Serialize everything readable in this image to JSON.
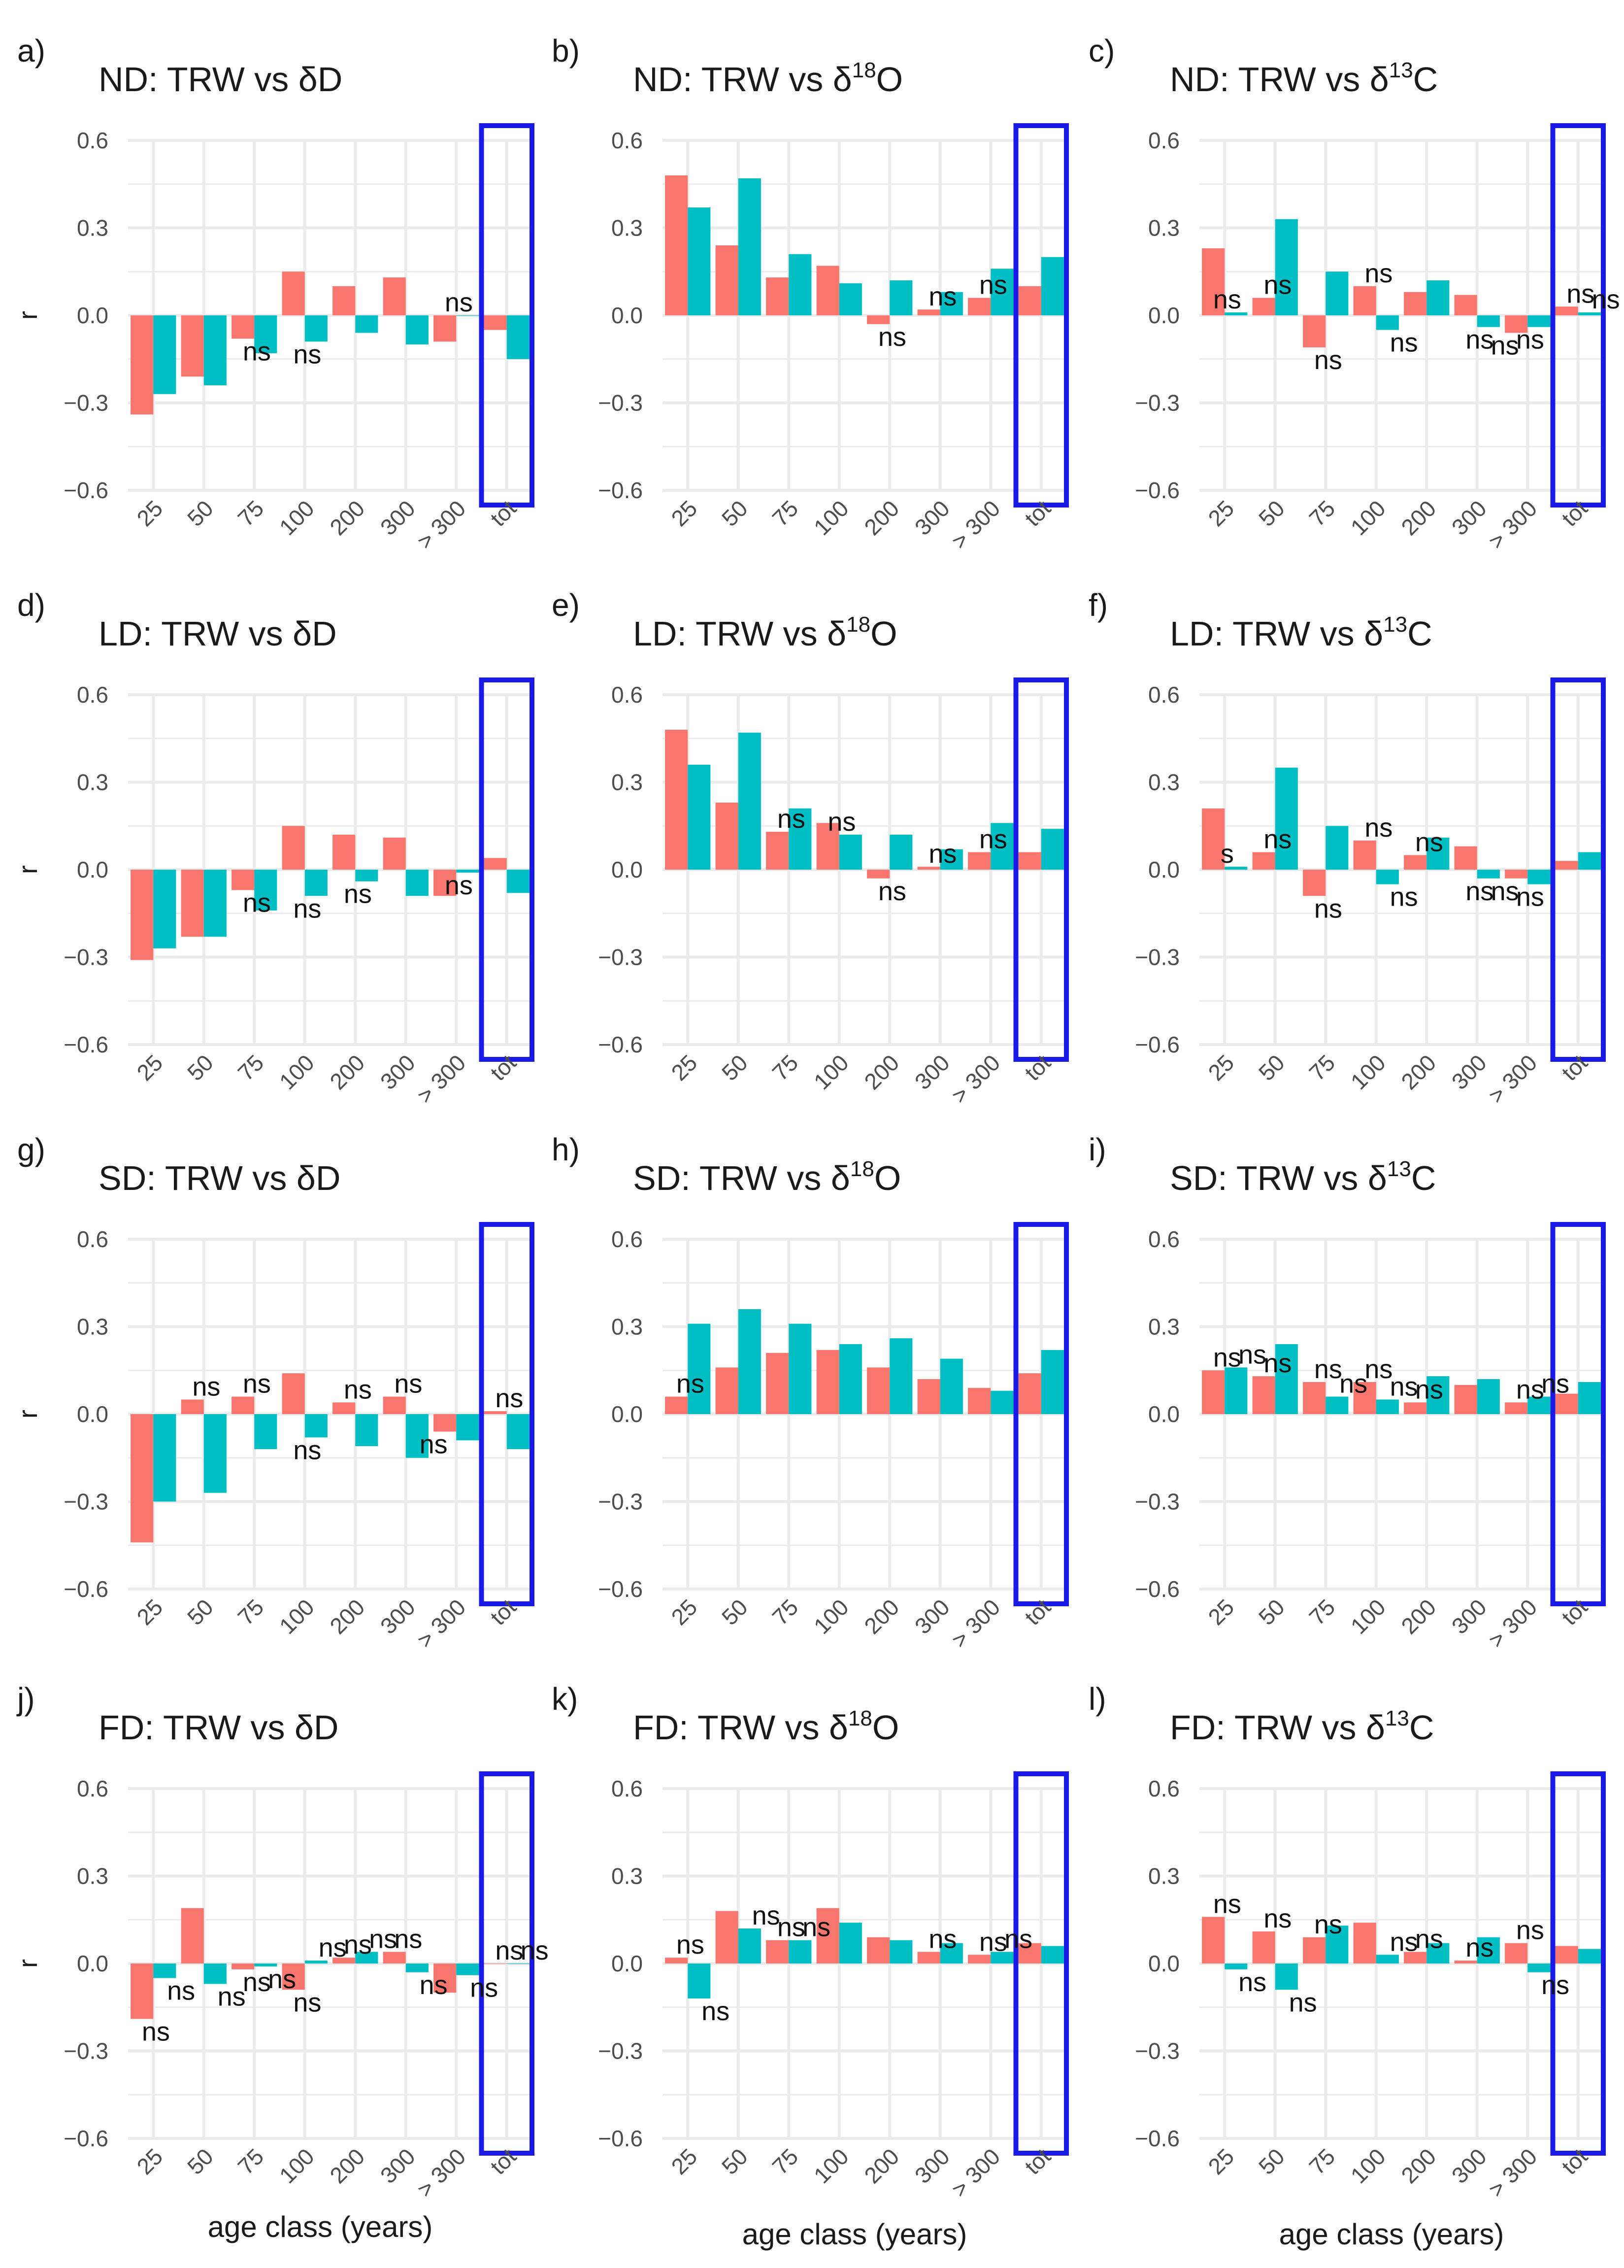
{
  "colors": {
    "series1": "#F8766D",
    "series2": "#00BFC4",
    "highlight": "#1A1AE6",
    "grid": "#EBEBEB"
  },
  "x_axis_label": "age class (years)",
  "chart_data": [
    {
      "type": "bar",
      "panel": "a)",
      "title_parts": [
        "ND: TRW vs ",
        "δD"
      ],
      "ylabel": "r",
      "categories": [
        "25",
        "50",
        "75",
        "100",
        "200",
        "300",
        "> 300",
        "tot"
      ],
      "yticks": [
        "0.6",
        "0.3",
        "0.0",
        "−0.3",
        "−0.6"
      ],
      "ylim": [
        -0.6,
        0.6
      ],
      "series": [
        {
          "name": "series1",
          "values": [
            -0.34,
            -0.21,
            -0.08,
            0.15,
            0.1,
            0.13,
            -0.09,
            -0.05
          ]
        },
        {
          "name": "series2",
          "values": [
            -0.27,
            -0.24,
            -0.13,
            -0.09,
            -0.06,
            -0.1,
            0.0,
            -0.15
          ]
        }
      ],
      "ns_labels": [
        {
          "text": "ns",
          "cat": 2,
          "value": -0.08
        },
        {
          "text": "ns",
          "cat": 3,
          "value": -0.09
        },
        {
          "text": "ns",
          "cat": 6,
          "value": 0.0
        }
      ]
    },
    {
      "type": "bar",
      "panel": "b)",
      "title_parts": [
        "ND: TRW vs ",
        "δ",
        "18",
        "O"
      ],
      "ylabel": "",
      "categories": [
        "25",
        "50",
        "75",
        "100",
        "200",
        "300",
        "> 300",
        "tot"
      ],
      "yticks": [
        "0.6",
        "0.3",
        "0.0",
        "−0.3",
        "−0.6"
      ],
      "ylim": [
        -0.6,
        0.6
      ],
      "series": [
        {
          "name": "series1",
          "values": [
            0.48,
            0.24,
            0.13,
            0.17,
            -0.03,
            0.02,
            0.06,
            0.1
          ]
        },
        {
          "name": "series2",
          "values": [
            0.37,
            0.47,
            0.21,
            0.11,
            0.12,
            0.08,
            0.16,
            0.2
          ]
        }
      ],
      "ns_labels": [
        {
          "text": "ns",
          "cat": 4,
          "value": -0.03
        },
        {
          "text": "ns",
          "cat": 5,
          "value": 0.02
        },
        {
          "text": "ns",
          "cat": 6,
          "value": 0.06
        }
      ]
    },
    {
      "type": "bar",
      "panel": "c)",
      "title_parts": [
        "ND: TRW vs ",
        "δ",
        "13",
        "C"
      ],
      "ylabel": "",
      "categories": [
        "25",
        "50",
        "75",
        "100",
        "200",
        "300",
        "> 300",
        "tot"
      ],
      "yticks": [
        "0.6",
        "0.3",
        "0.0",
        "−0.3",
        "−0.6"
      ],
      "ylim": [
        -0.6,
        0.6
      ],
      "series": [
        {
          "name": "series1",
          "values": [
            0.23,
            0.06,
            -0.11,
            0.1,
            0.08,
            0.07,
            -0.06,
            0.03
          ]
        },
        {
          "name": "series2",
          "values": [
            0.01,
            0.33,
            0.15,
            -0.05,
            0.12,
            -0.04,
            -0.04,
            0.01
          ]
        }
      ],
      "ns_labels": [
        {
          "text": "ns",
          "cat": 0,
          "value": 0.01
        },
        {
          "text": "ns",
          "cat": 1,
          "value": 0.06
        },
        {
          "text": "ns",
          "cat": 2,
          "value": -0.11
        },
        {
          "text": "ns",
          "cat": 3,
          "value": 0.1
        },
        {
          "text": "ns",
          "cat": 3.5,
          "value": -0.05
        },
        {
          "text": "ns",
          "cat": 5,
          "value": -0.04
        },
        {
          "text": "ns",
          "cat": 5.5,
          "value": -0.06
        },
        {
          "text": "ns",
          "cat": 6,
          "value": -0.04
        },
        {
          "text": "ns",
          "cat": 7,
          "value": 0.03
        },
        {
          "text": "ns",
          "cat": 7.5,
          "value": 0.01
        }
      ]
    },
    {
      "type": "bar",
      "panel": "d)",
      "title_parts": [
        "LD: TRW vs ",
        "δD"
      ],
      "ylabel": "r",
      "categories": [
        "25",
        "50",
        "75",
        "100",
        "200",
        "300",
        "> 300",
        "tot"
      ],
      "yticks": [
        "0.6",
        "0.3",
        "0.0",
        "−0.3",
        "−0.6"
      ],
      "ylim": [
        -0.6,
        0.6
      ],
      "series": [
        {
          "name": "series1",
          "values": [
            -0.31,
            -0.23,
            -0.07,
            0.15,
            0.12,
            0.11,
            -0.09,
            0.04
          ]
        },
        {
          "name": "series2",
          "values": [
            -0.27,
            -0.23,
            -0.14,
            -0.09,
            -0.04,
            -0.09,
            -0.01,
            -0.08
          ]
        }
      ],
      "ns_labels": [
        {
          "text": "ns",
          "cat": 2,
          "value": -0.07
        },
        {
          "text": "ns",
          "cat": 3,
          "value": -0.09
        },
        {
          "text": "ns",
          "cat": 4,
          "value": -0.04
        },
        {
          "text": "ns",
          "cat": 6,
          "value": -0.01
        }
      ]
    },
    {
      "type": "bar",
      "panel": "e)",
      "title_parts": [
        "LD: TRW vs ",
        "δ",
        "18",
        "O"
      ],
      "ylabel": "",
      "categories": [
        "25",
        "50",
        "75",
        "100",
        "200",
        "300",
        "> 300",
        "tot"
      ],
      "yticks": [
        "0.6",
        "0.3",
        "0.0",
        "−0.3",
        "−0.6"
      ],
      "ylim": [
        -0.6,
        0.6
      ],
      "series": [
        {
          "name": "series1",
          "values": [
            0.48,
            0.23,
            0.13,
            0.16,
            -0.03,
            0.01,
            0.06,
            0.06
          ]
        },
        {
          "name": "series2",
          "values": [
            0.36,
            0.47,
            0.21,
            0.12,
            0.12,
            0.07,
            0.16,
            0.14
          ]
        }
      ],
      "ns_labels": [
        {
          "text": "ns",
          "cat": 2,
          "value": 0.13
        },
        {
          "text": "ns",
          "cat": 3,
          "value": 0.12
        },
        {
          "text": "ns",
          "cat": 4,
          "value": -0.03
        },
        {
          "text": "ns",
          "cat": 5,
          "value": 0.01
        },
        {
          "text": "ns",
          "cat": 6,
          "value": 0.06
        }
      ]
    },
    {
      "type": "bar",
      "panel": "f)",
      "title_parts": [
        "LD: TRW vs ",
        "δ",
        "13",
        "C"
      ],
      "ylabel": "",
      "categories": [
        "25",
        "50",
        "75",
        "100",
        "200",
        "300",
        "> 300",
        "tot"
      ],
      "yticks": [
        "0.6",
        "0.3",
        "0.0",
        "−0.3",
        "−0.6"
      ],
      "ylim": [
        -0.6,
        0.6
      ],
      "series": [
        {
          "name": "series1",
          "values": [
            0.21,
            0.06,
            -0.09,
            0.1,
            0.05,
            0.08,
            -0.03,
            0.03
          ]
        },
        {
          "name": "series2",
          "values": [
            0.01,
            0.35,
            0.15,
            -0.05,
            0.11,
            -0.03,
            -0.05,
            0.06
          ]
        }
      ],
      "ns_labels": [
        {
          "text": "s",
          "cat": 0,
          "value": 0.01
        },
        {
          "text": "ns",
          "cat": 1,
          "value": 0.06
        },
        {
          "text": "ns",
          "cat": 2,
          "value": -0.09
        },
        {
          "text": "ns",
          "cat": 3,
          "value": 0.1
        },
        {
          "text": "ns",
          "cat": 3.5,
          "value": -0.05
        },
        {
          "text": "ns",
          "cat": 4,
          "value": 0.05
        },
        {
          "text": "ns",
          "cat": 5,
          "value": -0.03
        },
        {
          "text": "ns",
          "cat": 5.5,
          "value": -0.03
        },
        {
          "text": "ns",
          "cat": 6,
          "value": -0.05
        }
      ]
    },
    {
      "type": "bar",
      "panel": "g)",
      "title_parts": [
        "SD: TRW vs ",
        "δD"
      ],
      "ylabel": "r",
      "categories": [
        "25",
        "50",
        "75",
        "100",
        "200",
        "300",
        "> 300",
        "tot"
      ],
      "yticks": [
        "0.6",
        "0.3",
        "0.0",
        "−0.3",
        "−0.6"
      ],
      "ylim": [
        -0.6,
        0.6
      ],
      "series": [
        {
          "name": "series1",
          "values": [
            -0.44,
            0.05,
            0.06,
            0.14,
            0.04,
            0.06,
            -0.06,
            0.01
          ]
        },
        {
          "name": "series2",
          "values": [
            -0.3,
            -0.27,
            -0.12,
            -0.08,
            -0.11,
            -0.15,
            -0.09,
            -0.12
          ]
        }
      ],
      "ns_labels": [
        {
          "text": "ns",
          "cat": 1,
          "value": 0.05
        },
        {
          "text": "ns",
          "cat": 2,
          "value": 0.06
        },
        {
          "text": "ns",
          "cat": 3,
          "value": -0.08
        },
        {
          "text": "ns",
          "cat": 4,
          "value": 0.04
        },
        {
          "text": "ns",
          "cat": 5,
          "value": 0.06
        },
        {
          "text": "ns",
          "cat": 5.5,
          "value": -0.06
        },
        {
          "text": "ns",
          "cat": 7,
          "value": 0.01
        }
      ]
    },
    {
      "type": "bar",
      "panel": "h)",
      "title_parts": [
        "SD: TRW  vs ",
        "δ",
        "18",
        "O"
      ],
      "ylabel": "",
      "categories": [
        "25",
        "50",
        "75",
        "100",
        "200",
        "300",
        "> 300",
        "tot"
      ],
      "yticks": [
        "0.6",
        "0.3",
        "0.0",
        "−0.3",
        "−0.6"
      ],
      "ylim": [
        -0.6,
        0.6
      ],
      "series": [
        {
          "name": "series1",
          "values": [
            0.06,
            0.16,
            0.21,
            0.22,
            0.16,
            0.12,
            0.09,
            0.14
          ]
        },
        {
          "name": "series2",
          "values": [
            0.31,
            0.36,
            0.31,
            0.24,
            0.26,
            0.19,
            0.08,
            0.22
          ]
        }
      ],
      "ns_labels": [
        {
          "text": "ns",
          "cat": 0,
          "value": 0.06
        }
      ]
    },
    {
      "type": "bar",
      "panel": "i)",
      "title_parts": [
        "SD: TRW vs ",
        "δ",
        "13",
        "C"
      ],
      "ylabel": "",
      "categories": [
        "25",
        "50",
        "75",
        "100",
        "200",
        "300",
        "> 300",
        "tot"
      ],
      "yticks": [
        "0.6",
        "0.3",
        "0.0",
        "−0.3",
        "−0.6"
      ],
      "ylim": [
        -0.6,
        0.6
      ],
      "series": [
        {
          "name": "series1",
          "values": [
            0.15,
            0.13,
            0.11,
            0.11,
            0.04,
            0.1,
            0.04,
            0.07
          ]
        },
        {
          "name": "series2",
          "values": [
            0.16,
            0.24,
            0.06,
            0.05,
            0.13,
            0.12,
            0.06,
            0.11
          ]
        }
      ],
      "ns_labels": [
        {
          "text": "ns",
          "cat": 0,
          "value": 0.15
        },
        {
          "text": "ns",
          "cat": 0.5,
          "value": 0.16
        },
        {
          "text": "ns",
          "cat": 1,
          "value": 0.13
        },
        {
          "text": "ns",
          "cat": 2,
          "value": 0.11
        },
        {
          "text": "ns",
          "cat": 2.5,
          "value": 0.06
        },
        {
          "text": "ns",
          "cat": 3,
          "value": 0.11
        },
        {
          "text": "ns",
          "cat": 3.5,
          "value": 0.05
        },
        {
          "text": "ns",
          "cat": 4,
          "value": 0.04
        },
        {
          "text": "ns",
          "cat": 6,
          "value": 0.04
        },
        {
          "text": "ns",
          "cat": 6.5,
          "value": 0.06
        }
      ]
    },
    {
      "type": "bar",
      "panel": "j)",
      "title_parts": [
        "FD: TRW vs ",
        "δD"
      ],
      "ylabel": "r",
      "categories": [
        "25",
        "50",
        "75",
        "100",
        "200",
        "300",
        "> 300",
        "tot"
      ],
      "yticks": [
        "0.6",
        "0.3",
        "0.0",
        "−0.3",
        "−0.6"
      ],
      "ylim": [
        -0.6,
        0.6
      ],
      "series": [
        {
          "name": "series1",
          "values": [
            -0.19,
            0.19,
            -0.02,
            -0.09,
            0.02,
            0.04,
            -0.1,
            0.0
          ]
        },
        {
          "name": "series2",
          "values": [
            -0.05,
            -0.07,
            -0.01,
            0.01,
            0.04,
            -0.03,
            -0.04,
            0.0
          ]
        }
      ],
      "ns_labels": [
        {
          "text": "ns",
          "cat": 0,
          "value": -0.19
        },
        {
          "text": "ns",
          "cat": 0.5,
          "value": -0.05
        },
        {
          "text": "ns",
          "cat": 1.5,
          "value": -0.07
        },
        {
          "text": "ns",
          "cat": 2,
          "value": -0.02
        },
        {
          "text": "ns",
          "cat": 2.5,
          "value": -0.01
        },
        {
          "text": "ns",
          "cat": 3,
          "value": -0.09
        },
        {
          "text": "ns",
          "cat": 3.5,
          "value": 0.01
        },
        {
          "text": "ns",
          "cat": 4,
          "value": 0.02
        },
        {
          "text": "ns",
          "cat": 4.5,
          "value": 0.04
        },
        {
          "text": "ns",
          "cat": 5,
          "value": 0.04
        },
        {
          "text": "ns",
          "cat": 5.5,
          "value": -0.03
        },
        {
          "text": "ns",
          "cat": 6.5,
          "value": -0.04
        },
        {
          "text": "ns",
          "cat": 7,
          "value": 0.0
        },
        {
          "text": "ns",
          "cat": 7.5,
          "value": 0.0
        }
      ]
    },
    {
      "type": "bar",
      "panel": "k)",
      "title_parts": [
        "FD: TRW vs ",
        "δ",
        "18",
        "O"
      ],
      "ylabel": "",
      "categories": [
        "25",
        "50",
        "75",
        "100",
        "200",
        "300",
        "> 300",
        "tot"
      ],
      "yticks": [
        "0.6",
        "0.3",
        "0.0",
        "−0.3",
        "−0.6"
      ],
      "ylim": [
        -0.6,
        0.6
      ],
      "series": [
        {
          "name": "series1",
          "values": [
            0.02,
            0.18,
            0.08,
            0.19,
            0.09,
            0.04,
            0.03,
            0.07
          ]
        },
        {
          "name": "series2",
          "values": [
            -0.12,
            0.12,
            0.08,
            0.14,
            0.08,
            0.07,
            0.04,
            0.06
          ]
        }
      ],
      "ns_labels": [
        {
          "text": "ns",
          "cat": 0,
          "value": 0.02
        },
        {
          "text": "ns",
          "cat": 0.5,
          "value": -0.12
        },
        {
          "text": "ns",
          "cat": 1.5,
          "value": 0.12
        },
        {
          "text": "ns",
          "cat": 2,
          "value": 0.08
        },
        {
          "text": "ns",
          "cat": 2.5,
          "value": 0.08
        },
        {
          "text": "ns",
          "cat": 5,
          "value": 0.04
        },
        {
          "text": "ns",
          "cat": 6,
          "value": 0.03
        },
        {
          "text": "ns",
          "cat": 6.5,
          "value": 0.04
        }
      ]
    },
    {
      "type": "bar",
      "panel": "l)",
      "title_parts": [
        "FD: TRW vs ",
        "δ",
        "13",
        "C"
      ],
      "ylabel": "",
      "categories": [
        "25",
        "50",
        "75",
        "100",
        "200",
        "300",
        "> 300",
        "tot"
      ],
      "yticks": [
        "0.6",
        "0.3",
        "0.0",
        "−0.3",
        "−0.6"
      ],
      "ylim": [
        -0.6,
        0.6
      ],
      "series": [
        {
          "name": "series1",
          "values": [
            0.16,
            0.11,
            0.09,
            0.14,
            0.04,
            0.01,
            0.07,
            0.06
          ]
        },
        {
          "name": "series2",
          "values": [
            -0.02,
            -0.09,
            0.13,
            0.03,
            0.07,
            0.09,
            -0.03,
            0.05
          ]
        }
      ],
      "ns_labels": [
        {
          "text": "ns",
          "cat": 0,
          "value": 0.16
        },
        {
          "text": "ns",
          "cat": 0.5,
          "value": -0.02
        },
        {
          "text": "ns",
          "cat": 1,
          "value": 0.11
        },
        {
          "text": "ns",
          "cat": 1.5,
          "value": -0.09
        },
        {
          "text": "ns",
          "cat": 2,
          "value": 0.09
        },
        {
          "text": "ns",
          "cat": 3.5,
          "value": 0.03
        },
        {
          "text": "ns",
          "cat": 4,
          "value": 0.04
        },
        {
          "text": "ns",
          "cat": 5,
          "value": 0.01
        },
        {
          "text": "ns",
          "cat": 6,
          "value": 0.07
        },
        {
          "text": "ns",
          "cat": 6.5,
          "value": -0.03
        }
      ]
    }
  ]
}
